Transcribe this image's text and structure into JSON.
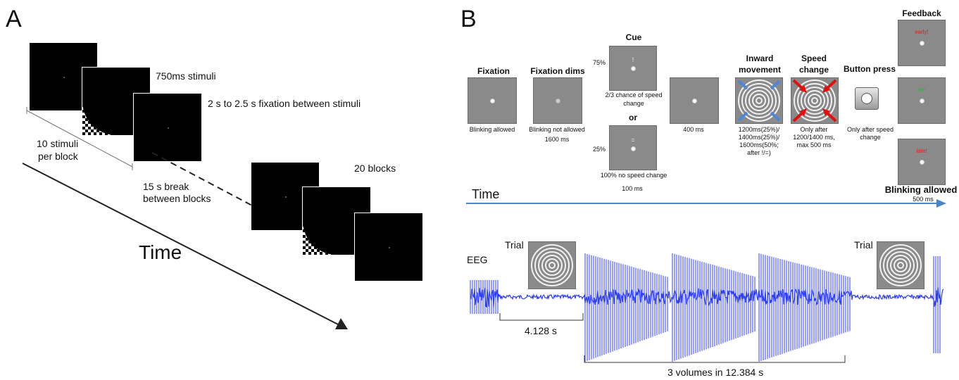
{
  "panel_a": {
    "letter": "A",
    "stimuli_label": "750ms stimuli",
    "fixation_label": "2 s to 2.5 s fixation between stimuli",
    "per_block_label_1": "10 stimuli",
    "per_block_label_2": "per block",
    "break_label_1": "15 s break",
    "break_label_2": "between blocks",
    "blocks_label": "20 blocks",
    "time_label": "Time"
  },
  "panel_b": {
    "letter": "B",
    "steps": {
      "fixation_title": "Fixation",
      "fixation_caption": "Blinking allowed",
      "fixation_dims_title": "Fixation dims",
      "fixation_dims_caption_1": "Blinking not allowed",
      "fixation_dims_caption_2": "1600 ms",
      "cue_title": "Cue",
      "cue_top_pct": "75%",
      "cue_top_symbol": "!",
      "cue_top_caption_1": "2/3 chance of speed",
      "cue_top_caption_2": "change",
      "cue_or": "or",
      "cue_bottom_pct": "25%",
      "cue_bottom_symbol": "=",
      "cue_bottom_caption": "100% no speed change",
      "cue_duration": "100 ms",
      "post_cue_duration": "400 ms",
      "inward_title_1": "Inward",
      "inward_title_2": "movement",
      "inward_caption_1": "1200ms(25%)/",
      "inward_caption_2": "1400ms(25%)/",
      "inward_caption_3": "1600ms(50%;",
      "inward_caption_4": "after !/=)",
      "speed_title_1": "Speed",
      "speed_title_2": "change",
      "speed_caption_1": "Only after",
      "speed_caption_2": "1200/1400 ms,",
      "speed_caption_3": "max 500 ms",
      "button_title": "Button press",
      "button_caption_1": "Only after speed",
      "button_caption_2": "change",
      "feedback_title": "Feedback",
      "feedback_early": "early!",
      "feedback_ok": "ok!",
      "feedback_late": "late!",
      "feedback_caption": "Blinking allowed",
      "feedback_duration": "500 ms"
    },
    "time_label": "Time",
    "eeg": {
      "eeg_label": "EEG",
      "trial_label_1": "Trial",
      "trial_label_2": "Trial",
      "interval_1": "4.128 s",
      "interval_2": "3 volumes in 12.384 s"
    }
  },
  "colors": {
    "eeg_trace": "#2f3ff0",
    "time_arrow_b": "#4a86c8",
    "inward_arrows": "#4f86d6",
    "speed_arrows": "#e01010",
    "feedback_early": "#e02020",
    "feedback_ok": "#1fbf2f",
    "feedback_late": "#e02020"
  }
}
